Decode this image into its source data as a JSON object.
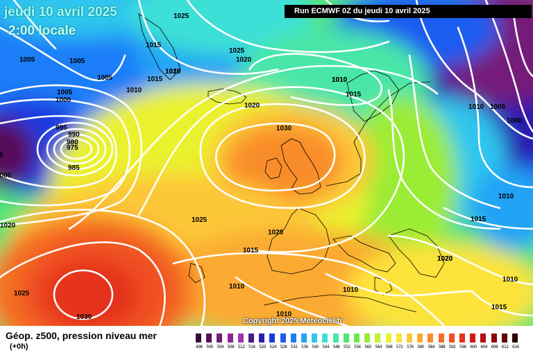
{
  "title": {
    "date": "jeudi 10 avril 2025",
    "time": "2:00 locale"
  },
  "run_info": "Run ECMWF 0Z du jeudi 10 avril 2025",
  "copyright": "Copyright 2025 Meteociel.fr",
  "footer": {
    "title": "Géop. z500, pression niveau mer",
    "subtitle": "(+0h)"
  },
  "legend": {
    "labels": [
      "496",
      "500",
      "504",
      "508",
      "512",
      "516",
      "520",
      "524",
      "528",
      "532",
      "536",
      "540",
      "544",
      "548",
      "552",
      "556",
      "560",
      "564",
      "568",
      "572",
      "576",
      "580",
      "584",
      "588",
      "592",
      "596",
      "600",
      "604",
      "608",
      "612",
      "616"
    ],
    "colors": [
      "#3d0a3e",
      "#56105a",
      "#741c7a",
      "#8e2696",
      "#a233b0",
      "#4a1a8a",
      "#2a1fb0",
      "#1a3be0",
      "#1e5cf0",
      "#1d7df8",
      "#22a3f6",
      "#2ec6ee",
      "#3ee0d6",
      "#48e6a8",
      "#52e474",
      "#6ee84a",
      "#9bec34",
      "#c6ef2c",
      "#eaf22e",
      "#fde33a",
      "#fcc838",
      "#fbaa30",
      "#f98c2a",
      "#f56e24",
      "#ef4f20",
      "#e5321c",
      "#d01a18",
      "#b00e12",
      "#8a0a0e",
      "#5e0608",
      "#2a0204"
    ]
  },
  "isobar_labels": [
    "1025",
    "1005",
    "1005",
    "1005",
    "1005",
    "1000",
    "995",
    "990",
    "980",
    "975",
    "985",
    "1000",
    "995",
    "1020",
    "1025",
    "1015",
    "1010",
    "1020",
    "1015",
    "1010",
    "1025",
    "1020",
    "1010",
    "1015",
    "1020",
    "1030",
    "1010",
    "1005",
    "1000",
    "1010",
    "1015",
    "1020",
    "1010",
    "1015",
    "1010",
    "1025",
    "1030",
    "1020",
    "1015",
    "1010",
    "1010",
    "1010",
    "1020"
  ],
  "colors": {
    "title_text": "#9ff8ff",
    "isobar": "#ffffff"
  }
}
